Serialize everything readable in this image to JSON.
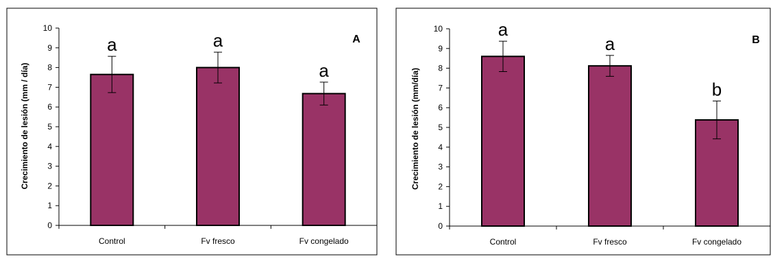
{
  "charts": [
    {
      "panel_label": "A",
      "ylabel": "Crecimiento de lesión (mm / día)",
      "categories": [
        "Control",
        "Fv fresco",
        "Fv congelado"
      ],
      "ytick_labels": [
        "0",
        "1",
        "2",
        "3",
        "4",
        "5",
        "6",
        "7",
        "8",
        "9",
        "10"
      ],
      "significance_letters": [
        "a",
        "a",
        "a"
      ]
    },
    {
      "panel_label": "B",
      "ylabel": "Crecimiento de lesión (mm/día)",
      "categories": [
        "Control",
        "Fv fresco",
        "Fv congelado"
      ],
      "ytick_labels": [
        "0",
        "1",
        "2",
        "3",
        "4",
        "5",
        "6",
        "7",
        "8",
        "9",
        "10"
      ],
      "significance_letters": [
        "a",
        "a",
        "b"
      ]
    }
  ],
  "chart_data": [
    {
      "type": "bar",
      "title": "",
      "panel_label": "A",
      "categories": [
        "Control",
        "Fv fresco",
        "Fv congelado"
      ],
      "values": [
        7.65,
        8.0,
        6.68
      ],
      "error": [
        0.92,
        0.78,
        0.58
      ],
      "significance": [
        "a",
        "a",
        "a"
      ],
      "xlabel": "",
      "ylabel": "Crecimiento de lesión (mm / día)",
      "ylim": [
        0,
        10
      ],
      "yticks": [
        0,
        1,
        2,
        3,
        4,
        5,
        6,
        7,
        8,
        9,
        10
      ],
      "grid": false,
      "bar_color": "#993366"
    },
    {
      "type": "bar",
      "title": "",
      "panel_label": "B",
      "categories": [
        "Control",
        "Fv fresco",
        "Fv congelado"
      ],
      "values": [
        8.6,
        8.12,
        5.38
      ],
      "error": [
        0.77,
        0.53,
        0.96
      ],
      "significance": [
        "a",
        "a",
        "b"
      ],
      "xlabel": "",
      "ylabel": "Crecimiento de lesión (mm/día)",
      "ylim": [
        0,
        10
      ],
      "yticks": [
        0,
        1,
        2,
        3,
        4,
        5,
        6,
        7,
        8,
        9,
        10
      ],
      "grid": false,
      "bar_color": "#993366"
    }
  ]
}
